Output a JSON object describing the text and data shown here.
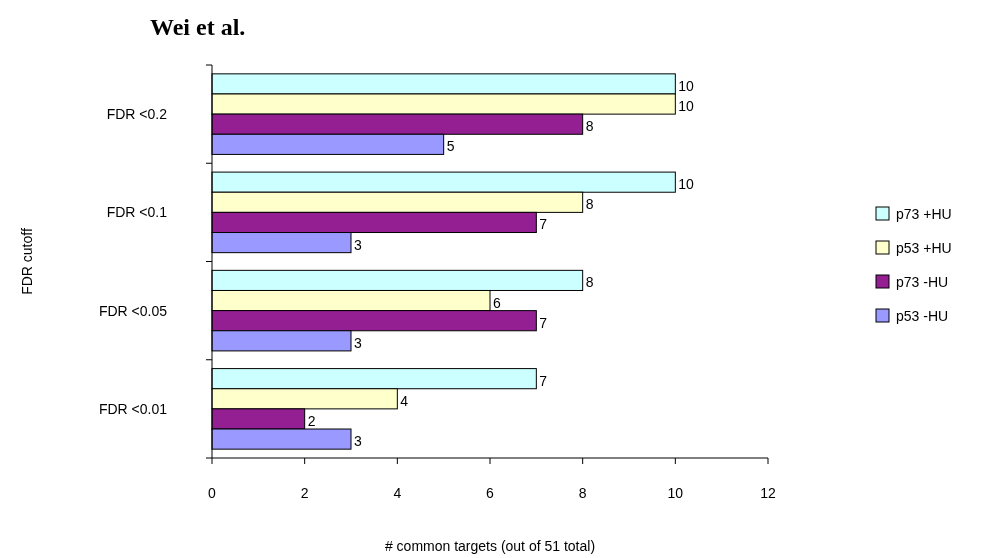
{
  "chart_data": {
    "type": "bar",
    "orientation": "horizontal",
    "title": "Wei et al.",
    "xlabel": "# common targets (out of 51 total)",
    "ylabel": "FDR cutoff",
    "categories": [
      "FDR <0.2",
      "FDR <0.1",
      "FDR <0.05",
      "FDR <0.01"
    ],
    "series": [
      {
        "name": "p73 +HU",
        "color": "#ccffff",
        "values": [
          10,
          10,
          8,
          7
        ]
      },
      {
        "name": "p53 +HU",
        "color": "#ffffcc",
        "values": [
          10,
          8,
          6,
          4
        ]
      },
      {
        "name": "p73 -HU",
        "color": "#931f93",
        "values": [
          8,
          7,
          7,
          2
        ]
      },
      {
        "name": "p53 -HU",
        "color": "#9999ff",
        "values": [
          5,
          3,
          3,
          3
        ]
      }
    ],
    "xlim": [
      0,
      12
    ],
    "xticks": [
      0,
      2,
      4,
      6,
      8,
      10,
      12
    ],
    "grid": false,
    "legend": "right",
    "data_labels": true
  }
}
